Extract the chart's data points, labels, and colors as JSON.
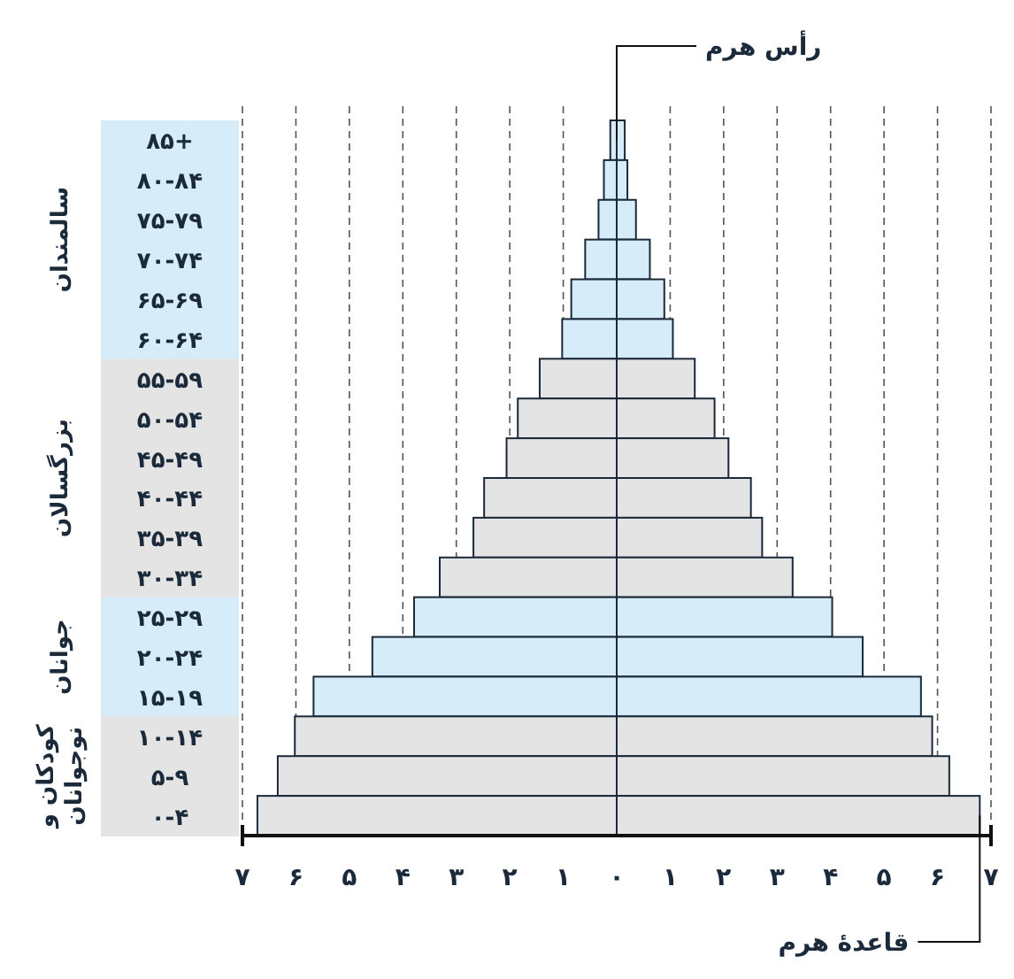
{
  "chart_data": {
    "type": "bar",
    "orientation": "horizontal",
    "stacked": true,
    "categories": [
      "۸۵+",
      "۸۰-۸۴",
      "۷۵-۷۹",
      "۷۰-۷۴",
      "۶۵-۶۹",
      "۶۰-۶۴",
      "۵۵-۵۹",
      "۵۰-۵۴",
      "۴۵-۴۹",
      "۴۰-۴۴",
      "۳۵-۳۹",
      "۳۰-۳۴",
      "۲۵-۲۹",
      "۲۰-۲۴",
      "۱۵-۱۹",
      "۱۰-۱۴",
      "۵-۹",
      "۰-۴"
    ],
    "series": [
      {
        "colors": [
          "#d6ecf8",
          "#d6ecf8",
          "#d6ecf8",
          "#d6ecf8",
          "#d6ecf8",
          "#d6ecf8",
          "#e4e4e4",
          "#e4e4e4",
          "#e4e4e4",
          "#e4e4e4",
          "#e4e4e4",
          "#e4e4e4",
          "#d6ecf8",
          "#d6ecf8",
          "#d6ecf8",
          "#e4e4e4",
          "#e4e4e4",
          "#e4e4e4"
        ],
        "values": [
          -0.12,
          -0.24,
          -0.34,
          -0.59,
          -0.85,
          -1.02,
          -1.44,
          -1.85,
          -2.06,
          -2.48,
          -2.68,
          -3.31,
          -3.79,
          -4.57,
          -5.67,
          -6.02,
          -6.34,
          -6.72
        ]
      },
      {
        "colors": [
          "#d6ecf8",
          "#d6ecf8",
          "#d6ecf8",
          "#d6ecf8",
          "#d6ecf8",
          "#d6ecf8",
          "#e4e4e4",
          "#e4e4e4",
          "#e4e4e4",
          "#e4e4e4",
          "#e4e4e4",
          "#e4e4e4",
          "#d6ecf8",
          "#d6ecf8",
          "#d6ecf8",
          "#e4e4e4",
          "#e4e4e4",
          "#e4e4e4"
        ],
        "values": [
          0.15,
          0.2,
          0.36,
          0.62,
          0.89,
          1.05,
          1.46,
          1.83,
          2.09,
          2.51,
          2.72,
          3.29,
          4.03,
          4.6,
          5.69,
          5.9,
          6.22,
          6.79
        ]
      }
    ],
    "xlim": [
      -7,
      7
    ],
    "xticks": [
      {
        "value": -7,
        "label": "۷"
      },
      {
        "value": -6,
        "label": "۶"
      },
      {
        "value": -5,
        "label": "۵"
      },
      {
        "value": -4,
        "label": "۴"
      },
      {
        "value": -3,
        "label": "۳"
      },
      {
        "value": -2,
        "label": "۲"
      },
      {
        "value": -1,
        "label": "۱"
      },
      {
        "value": 0,
        "label": "۰"
      },
      {
        "value": 1,
        "label": "۱"
      },
      {
        "value": 2,
        "label": "۲"
      },
      {
        "value": 3,
        "label": "۳"
      },
      {
        "value": 4,
        "label": "۴"
      },
      {
        "value": 5,
        "label": "۵"
      },
      {
        "value": 6,
        "label": "۶"
      },
      {
        "value": 7,
        "label": "۷"
      }
    ],
    "grid": "x",
    "annotations": [
      "سالمندان",
      "بزرگسالان",
      "جوانان",
      "کودکان و\nنوجوانان",
      {
        "text": "رأس هرم",
        "x": 0,
        "y": "۸۵+"
      },
      {
        "text": "قاعدهٔ هرم",
        "x": 6.79,
        "y": "۰-۴"
      }
    ]
  }
}
